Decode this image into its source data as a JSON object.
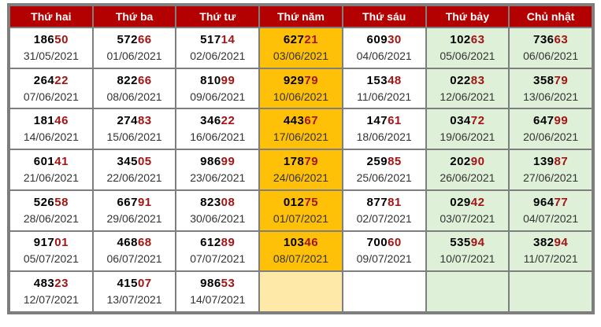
{
  "headers": [
    "Thứ hai",
    "Thứ ba",
    "Thứ tư",
    "Thứ năm",
    "Thứ sáu",
    "Thứ bảy",
    "Chủ nhật"
  ],
  "colors": {
    "header_bg": "#b30000",
    "thursday_bg": "#ffc107",
    "thursday_empty_bg": "#ffe9a8",
    "weekend_bg": "#dff0d8",
    "tail_digits": "#a31515"
  },
  "rows": [
    [
      {
        "head": "186",
        "tail": "50",
        "date": "31/05/2021"
      },
      {
        "head": "572",
        "tail": "66",
        "date": "01/06/2021"
      },
      {
        "head": "517",
        "tail": "14",
        "date": "02/06/2021"
      },
      {
        "head": "627",
        "tail": "21",
        "date": "03/06/2021"
      },
      {
        "head": "609",
        "tail": "30",
        "date": "04/06/2021"
      },
      {
        "head": "102",
        "tail": "63",
        "date": "05/06/2021"
      },
      {
        "head": "736",
        "tail": "63",
        "date": "06/06/2021"
      }
    ],
    [
      {
        "head": "264",
        "tail": "22",
        "date": "07/06/2021"
      },
      {
        "head": "822",
        "tail": "66",
        "date": "08/06/2021"
      },
      {
        "head": "810",
        "tail": "99",
        "date": "09/06/2021"
      },
      {
        "head": "929",
        "tail": "79",
        "date": "10/06/2021"
      },
      {
        "head": "153",
        "tail": "48",
        "date": "11/06/2021"
      },
      {
        "head": "022",
        "tail": "83",
        "date": "12/06/2021"
      },
      {
        "head": "358",
        "tail": "79",
        "date": "13/06/2021"
      }
    ],
    [
      {
        "head": "181",
        "tail": "46",
        "date": "14/06/2021"
      },
      {
        "head": "274",
        "tail": "83",
        "date": "15/06/2021"
      },
      {
        "head": "346",
        "tail": "22",
        "date": "16/06/2021"
      },
      {
        "head": "443",
        "tail": "67",
        "date": "17/06/2021"
      },
      {
        "head": "147",
        "tail": "61",
        "date": "18/06/2021"
      },
      {
        "head": "034",
        "tail": "72",
        "date": "19/06/2021"
      },
      {
        "head": "647",
        "tail": "99",
        "date": "20/06/2021"
      }
    ],
    [
      {
        "head": "601",
        "tail": "41",
        "date": "21/06/2021"
      },
      {
        "head": "345",
        "tail": "05",
        "date": "22/06/2021"
      },
      {
        "head": "986",
        "tail": "99",
        "date": "23/06/2021"
      },
      {
        "head": "178",
        "tail": "79",
        "date": "24/06/2021"
      },
      {
        "head": "259",
        "tail": "85",
        "date": "25/06/2021"
      },
      {
        "head": "202",
        "tail": "90",
        "date": "26/06/2021"
      },
      {
        "head": "139",
        "tail": "87",
        "date": "27/06/2021"
      }
    ],
    [
      {
        "head": "526",
        "tail": "58",
        "date": "28/06/2021"
      },
      {
        "head": "667",
        "tail": "91",
        "date": "29/06/2021"
      },
      {
        "head": "823",
        "tail": "08",
        "date": "30/06/2021"
      },
      {
        "head": "012",
        "tail": "75",
        "date": "01/07/2021"
      },
      {
        "head": "877",
        "tail": "81",
        "date": "02/07/2021"
      },
      {
        "head": "029",
        "tail": "42",
        "date": "03/07/2021"
      },
      {
        "head": "964",
        "tail": "77",
        "date": "04/07/2021"
      }
    ],
    [
      {
        "head": "917",
        "tail": "01",
        "date": "05/07/2021"
      },
      {
        "head": "468",
        "tail": "68",
        "date": "06/07/2021"
      },
      {
        "head": "612",
        "tail": "89",
        "date": "07/07/2021"
      },
      {
        "head": "103",
        "tail": "46",
        "date": "08/07/2021"
      },
      {
        "head": "700",
        "tail": "60",
        "date": "09/07/2021"
      },
      {
        "head": "535",
        "tail": "94",
        "date": "10/07/2021"
      },
      {
        "head": "382",
        "tail": "94",
        "date": "11/07/2021"
      }
    ],
    [
      {
        "head": "483",
        "tail": "23",
        "date": "12/07/2021"
      },
      {
        "head": "415",
        "tail": "07",
        "date": "13/07/2021"
      },
      {
        "head": "986",
        "tail": "53",
        "date": "14/07/2021"
      },
      null,
      null,
      null,
      null
    ]
  ]
}
